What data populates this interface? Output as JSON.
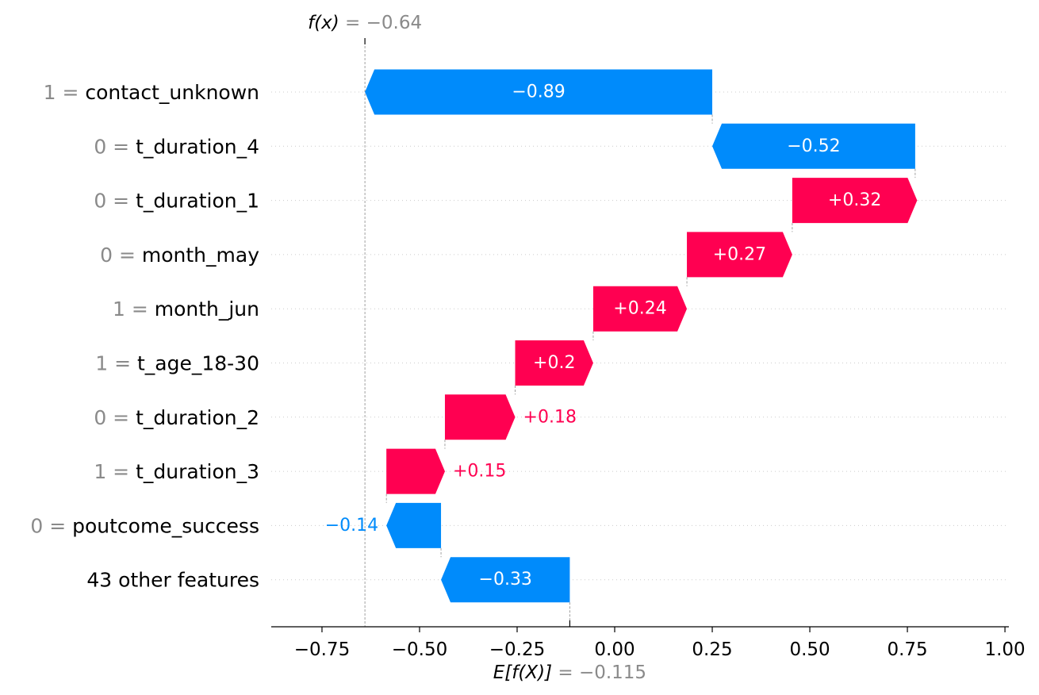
{
  "chart_data": {
    "type": "waterfall",
    "fx": {
      "label": "f(x)",
      "eq": " = ",
      "value": -0.64,
      "value_text": "−0.64"
    },
    "efx": {
      "label": "E[f(X)]",
      "eq": " = ",
      "value": -0.115,
      "value_text": "−0.115"
    },
    "features": [
      {
        "value": "1",
        "name": "contact_unknown",
        "contribution": -0.89,
        "label": "−0.89",
        "start": 0.25,
        "end": -0.64
      },
      {
        "value": "0",
        "name": "t_duration_4",
        "contribution": -0.52,
        "label": "−0.52",
        "start": 0.77,
        "end": 0.25
      },
      {
        "value": "0",
        "name": "t_duration_1",
        "contribution": 0.32,
        "label": "+0.32",
        "start": 0.455,
        "end": 0.775
      },
      {
        "value": "0",
        "name": "month_may",
        "contribution": 0.27,
        "label": "+0.27",
        "start": 0.185,
        "end": 0.455
      },
      {
        "value": "1",
        "name": "month_jun",
        "contribution": 0.24,
        "label": "+0.24",
        "start": -0.055,
        "end": 0.185
      },
      {
        "value": "1",
        "name": "t_age_18-30",
        "contribution": 0.2,
        "label": "+0.2",
        "start": -0.255,
        "end": -0.055
      },
      {
        "value": "0",
        "name": "t_duration_2",
        "contribution": 0.18,
        "label": "+0.18",
        "start": -0.435,
        "end": -0.255
      },
      {
        "value": "1",
        "name": "t_duration_3",
        "contribution": 0.15,
        "label": "+0.15",
        "start": -0.585,
        "end": -0.435
      },
      {
        "value": "0",
        "name": "poutcome_success",
        "contribution": -0.14,
        "label": "−0.14",
        "start": -0.445,
        "end": -0.585
      },
      {
        "value": "",
        "name": "43 other features",
        "contribution": -0.33,
        "label": "−0.33",
        "start": -0.115,
        "end": -0.445
      }
    ],
    "x_ticks": [
      {
        "v": -0.75,
        "label": "−0.75"
      },
      {
        "v": -0.5,
        "label": "−0.50"
      },
      {
        "v": -0.25,
        "label": "−0.25"
      },
      {
        "v": 0.0,
        "label": "0.00"
      },
      {
        "v": 0.25,
        "label": "0.25"
      },
      {
        "v": 0.5,
        "label": "0.50"
      },
      {
        "v": 0.75,
        "label": "0.75"
      },
      {
        "v": 1.0,
        "label": "1.00"
      }
    ],
    "xlim": [
      -0.88,
      1.01
    ],
    "colors": {
      "positive": "#ff0051",
      "negative": "#008bfb",
      "gray": "#8a8a8a",
      "grid": "#cccccc"
    }
  }
}
